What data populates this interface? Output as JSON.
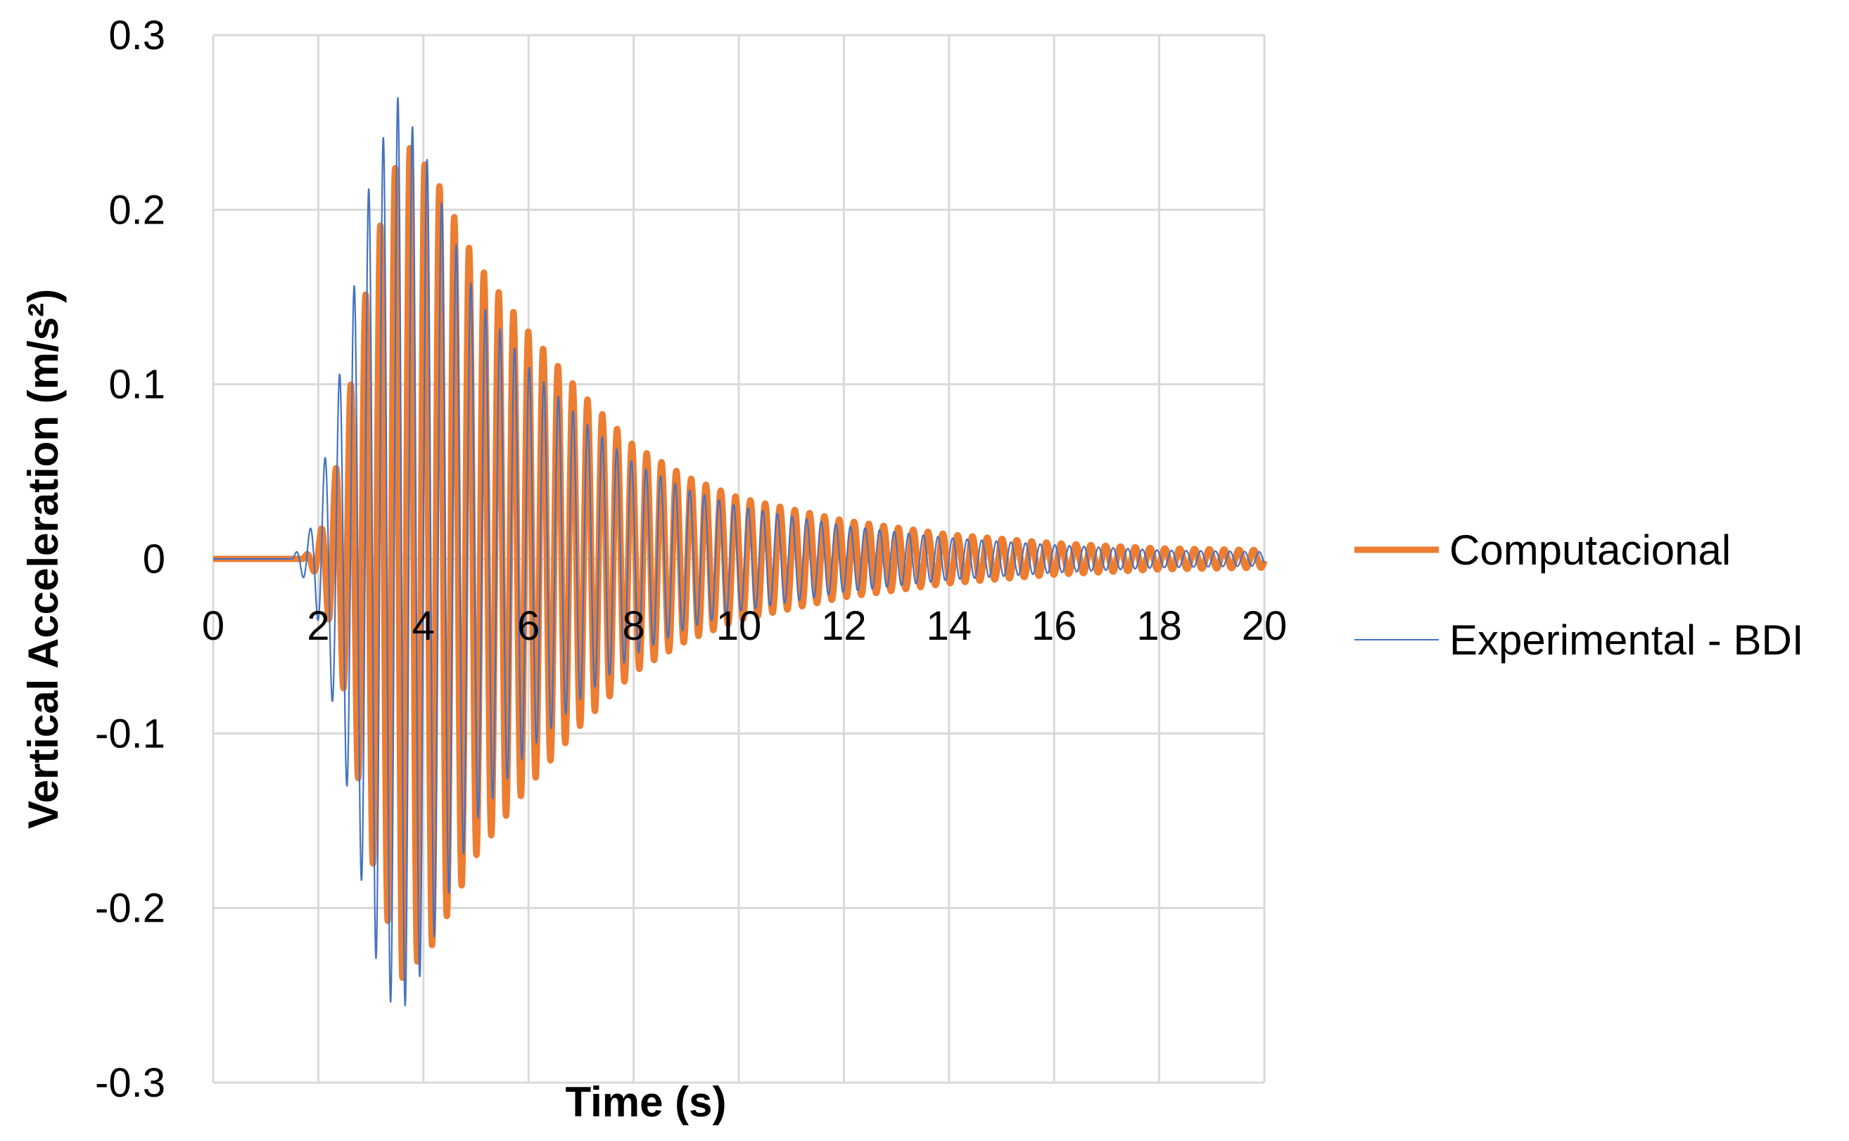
{
  "chart_data": {
    "type": "line",
    "title": "",
    "xlabel": "Time (s)",
    "ylabel": "Vertical Acceleration (m/s²)",
    "xlim": [
      0,
      20
    ],
    "ylim": [
      -0.3,
      0.3
    ],
    "x_ticks": [
      "0",
      "2",
      "4",
      "6",
      "8",
      "10",
      "12",
      "14",
      "16",
      "18",
      "20"
    ],
    "y_ticks": [
      "0.3",
      "0.2",
      "0.1",
      "0",
      "-0.1",
      "-0.2",
      "-0.3"
    ],
    "grid": true,
    "legend_position": "right",
    "series": [
      {
        "name": "Computacional",
        "color": "#ED7D31",
        "oscillation_frequency_hz": 3.55,
        "onset_time_s": 1.7,
        "peak_time_s": 3.6,
        "peak_amplitude": 0.24,
        "amplitude_at_10s": 0.035,
        "amplitude_at_20s": 0.005,
        "envelope": [
          [
            1.7,
            0.0
          ],
          [
            2.0,
            0.01
          ],
          [
            2.4,
            0.06
          ],
          [
            3.0,
            0.17
          ],
          [
            3.6,
            0.24
          ],
          [
            4.2,
            0.22
          ],
          [
            5.0,
            0.17
          ],
          [
            6.0,
            0.13
          ],
          [
            7.0,
            0.095
          ],
          [
            8.0,
            0.065
          ],
          [
            9.0,
            0.047
          ],
          [
            10.0,
            0.035
          ],
          [
            12.0,
            0.022
          ],
          [
            14.0,
            0.014
          ],
          [
            16.0,
            0.009
          ],
          [
            18.0,
            0.006
          ],
          [
            20.0,
            0.005
          ]
        ]
      },
      {
        "name": "Experimental - BDI",
        "color": "#4472C4",
        "oscillation_frequency_hz": 3.6,
        "onset_time_s": 1.5,
        "peak_time_s": 3.5,
        "peak_amplitude": 0.265,
        "amplitude_at_10s": 0.03,
        "amplitude_at_20s": 0.004,
        "envelope": [
          [
            1.5,
            0.0
          ],
          [
            1.9,
            0.02
          ],
          [
            2.2,
            0.07
          ],
          [
            2.6,
            0.14
          ],
          [
            3.0,
            0.22
          ],
          [
            3.5,
            0.265
          ],
          [
            4.0,
            0.235
          ],
          [
            4.5,
            0.19
          ],
          [
            5.0,
            0.15
          ],
          [
            6.0,
            0.11
          ],
          [
            7.0,
            0.08
          ],
          [
            8.0,
            0.055
          ],
          [
            9.0,
            0.04
          ],
          [
            10.0,
            0.03
          ],
          [
            12.0,
            0.019
          ],
          [
            14.0,
            0.012
          ],
          [
            16.0,
            0.008
          ],
          [
            18.0,
            0.005
          ],
          [
            20.0,
            0.004
          ]
        ]
      }
    ]
  }
}
